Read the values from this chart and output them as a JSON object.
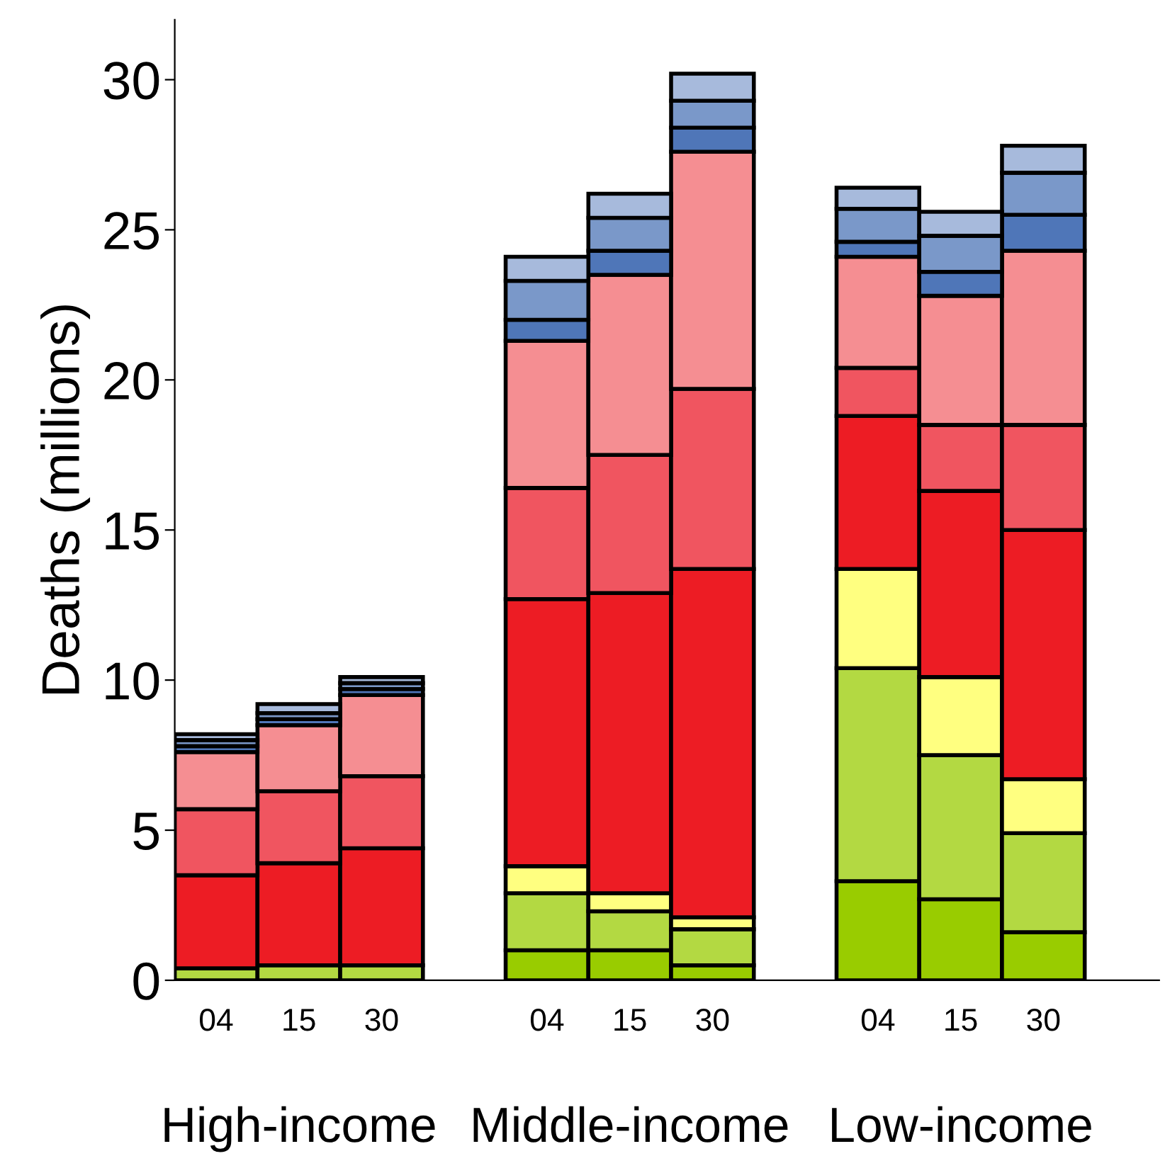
{
  "chart_data": {
    "type": "bar",
    "stacked": true,
    "ylabel": "Deaths (millions)",
    "categories": [
      "04",
      "15",
      "30",
      null,
      "04",
      "15",
      "30",
      null,
      "04",
      "15",
      "30"
    ],
    "series": [
      {
        "color": "#99cc00",
        "values": [
          null,
          null,
          null,
          null,
          1.0,
          1.0,
          0.5,
          null,
          3.3,
          2.7,
          1.6
        ]
      },
      {
        "color": "#b3d942",
        "values": [
          0.4,
          0.5,
          0.5,
          null,
          1.9,
          1.3,
          1.2,
          null,
          7.1,
          4.8,
          3.3
        ]
      },
      {
        "color": "#ffff80",
        "values": [
          null,
          null,
          null,
          null,
          0.9,
          0.6,
          0.4,
          null,
          3.3,
          2.6,
          1.8
        ]
      },
      {
        "color": "#ed1c24",
        "values": [
          3.1,
          3.4,
          3.9,
          null,
          8.9,
          10.0,
          11.6,
          null,
          5.1,
          6.2,
          8.3
        ]
      },
      {
        "color": "#f05560",
        "values": [
          2.2,
          2.4,
          2.4,
          null,
          3.7,
          4.6,
          6.0,
          null,
          1.6,
          2.2,
          3.5
        ]
      },
      {
        "color": "#f58e92",
        "values": [
          1.9,
          2.2,
          2.7,
          null,
          4.9,
          6.0,
          7.9,
          null,
          3.7,
          4.3,
          5.8
        ]
      },
      {
        "color": "#4f76b8",
        "values": [
          0.2,
          0.2,
          0.2,
          null,
          0.7,
          0.8,
          0.8,
          null,
          0.5,
          0.8,
          1.2
        ]
      },
      {
        "color": "#7a98c9",
        "values": [
          0.2,
          0.2,
          0.2,
          null,
          1.3,
          1.1,
          0.9,
          null,
          1.1,
          1.2,
          1.4
        ]
      },
      {
        "color": "#a7badc",
        "values": [
          0.2,
          0.3,
          0.2,
          null,
          0.8,
          0.8,
          0.9,
          null,
          0.7,
          0.8,
          0.9
        ]
      }
    ],
    "ylim": [
      0,
      32
    ],
    "yticks": [
      0,
      5,
      10,
      15,
      20,
      25,
      30
    ],
    "grid": false,
    "legend": false,
    "annotations": [
      "High-income",
      "Middle-income",
      "Low-income"
    ]
  }
}
